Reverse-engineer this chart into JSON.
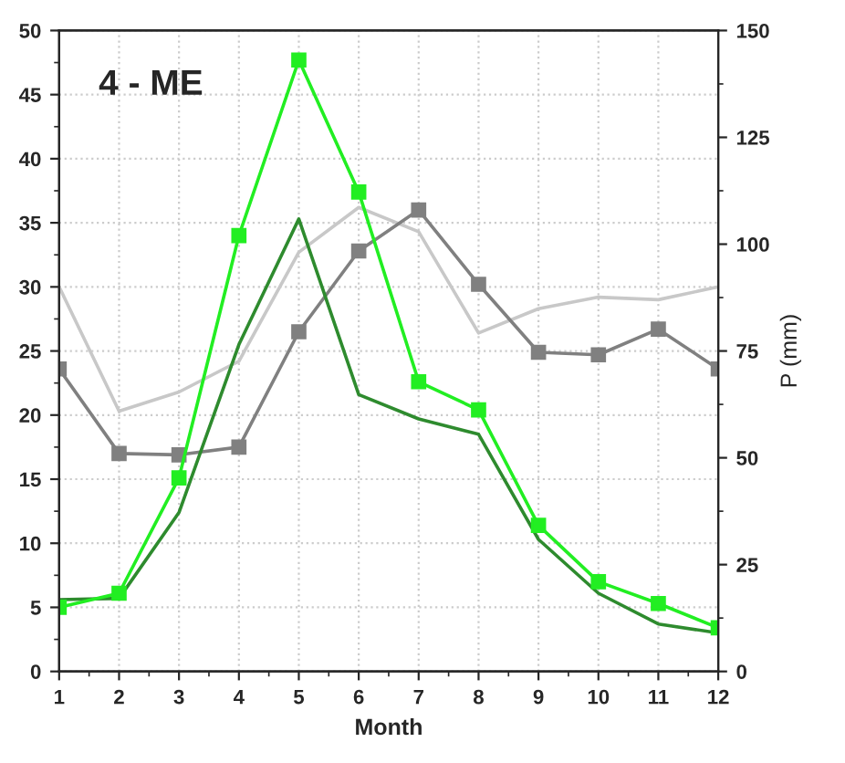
{
  "chart_data": {
    "type": "line",
    "annotations": [
      "4 - ME"
    ],
    "xlabel": "Month",
    "y2label": "P (mm)",
    "x": [
      1,
      2,
      3,
      4,
      5,
      6,
      7,
      8,
      9,
      10,
      11,
      12
    ],
    "series": [
      {
        "color": "#c8c8c8",
        "marker": "none",
        "values": [
          30.0,
          20.3,
          21.8,
          24.2,
          32.7,
          36.2,
          34.3,
          26.4,
          28.3,
          29.2,
          29.0,
          30.0
        ]
      },
      {
        "color": "#808080",
        "marker": "square",
        "values": [
          23.6,
          17.0,
          16.9,
          17.5,
          26.5,
          32.8,
          36.0,
          30.2,
          24.9,
          24.7,
          26.7,
          23.6
        ]
      },
      {
        "color": "#2e8b2e",
        "marker": "none",
        "values": [
          5.6,
          5.7,
          12.4,
          25.5,
          35.3,
          21.6,
          19.7,
          18.5,
          10.3,
          6.1,
          3.7,
          3.0
        ]
      },
      {
        "color": "#22ee22",
        "marker": "square",
        "values": [
          5.0,
          6.1,
          15.1,
          34.0,
          47.7,
          37.4,
          22.6,
          20.4,
          11.4,
          7.0,
          5.3,
          3.4
        ]
      }
    ],
    "xlim": [
      1,
      12
    ],
    "xticks": [
      1,
      2,
      3,
      4,
      5,
      6,
      7,
      8,
      9,
      10,
      11,
      12
    ],
    "ylim": [
      0,
      50
    ],
    "yticks": [
      0,
      5,
      10,
      15,
      20,
      25,
      30,
      35,
      40,
      45,
      50
    ],
    "y2lim": [
      0,
      150
    ],
    "y2ticks": [
      0,
      25,
      50,
      75,
      100,
      125,
      150
    ],
    "grid": true,
    "line_style": "solid"
  }
}
